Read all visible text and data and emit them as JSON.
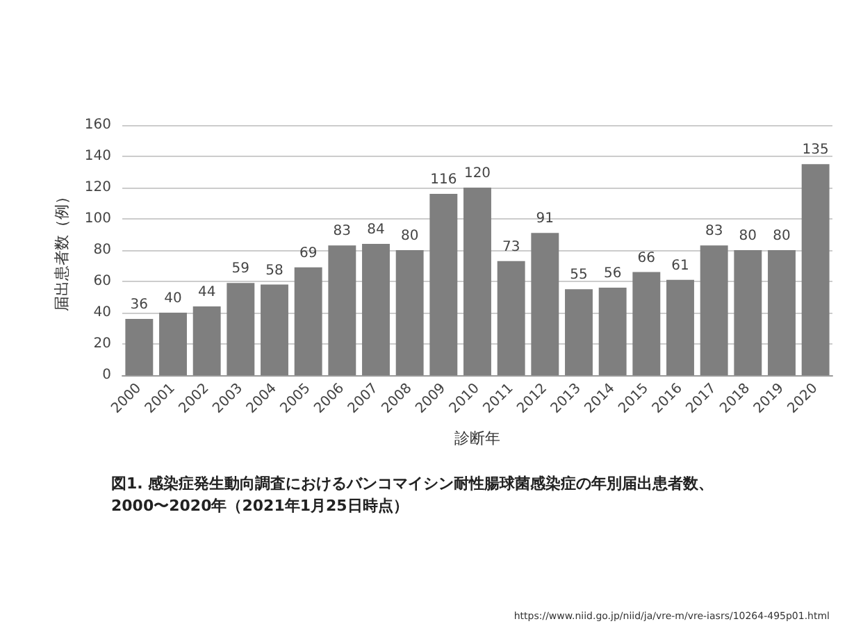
{
  "chart_data": {
    "type": "bar",
    "categories": [
      "2000",
      "2001",
      "2002",
      "2003",
      "2004",
      "2005",
      "2006",
      "2007",
      "2008",
      "2009",
      "2010",
      "2011",
      "2012",
      "2013",
      "2014",
      "2015",
      "2016",
      "2017",
      "2018",
      "2019",
      "2020"
    ],
    "values": [
      36,
      40,
      44,
      59,
      58,
      69,
      83,
      84,
      80,
      116,
      120,
      73,
      91,
      55,
      56,
      66,
      61,
      83,
      80,
      80,
      135
    ],
    "color": "#7f7f7f",
    "xlabel": "診断年",
    "ylabel": "届出患者数（例）",
    "ylim": [
      0,
      160
    ],
    "yticks": [
      0,
      20,
      40,
      60,
      80,
      100,
      120,
      140,
      160
    ],
    "grid": "y",
    "data_labels": true,
    "annotations": [
      "図1. 感染症発生動向調査におけるバンコマイシン耐性腸球菌感染症の年別届出患者数、\n2000〜2020年（2021年1月25日時点）",
      "https://www.niid.go.jp/niid/ja/vre-m/vre-iasrs/10264-495p01.html"
    ]
  }
}
